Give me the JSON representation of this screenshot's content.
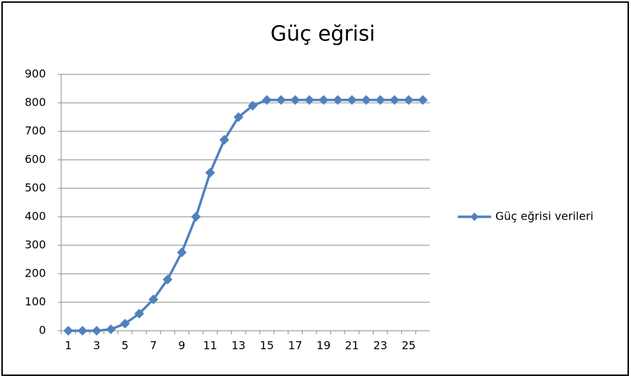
{
  "chart_data": {
    "type": "line",
    "title": "Güç eğrisi",
    "categories": [
      1,
      null,
      3,
      null,
      5,
      null,
      7,
      null,
      9,
      null,
      11,
      null,
      13,
      null,
      15,
      null,
      17,
      null,
      19,
      null,
      21,
      null,
      23,
      null,
      25,
      null
    ],
    "series": [
      {
        "name": "Güç eğrisi verileri",
        "color": "#4f81bd",
        "values": [
          0,
          0,
          0,
          5,
          25,
          60,
          110,
          180,
          275,
          400,
          555,
          670,
          750,
          790,
          810,
          810,
          810,
          810,
          810,
          810,
          810,
          810,
          810,
          810,
          810,
          810
        ]
      }
    ],
    "ylim": [
      0,
      900
    ],
    "yticks": [
      0,
      100,
      200,
      300,
      400,
      500,
      600,
      700,
      800,
      900
    ],
    "grid": true,
    "legend": "right"
  }
}
